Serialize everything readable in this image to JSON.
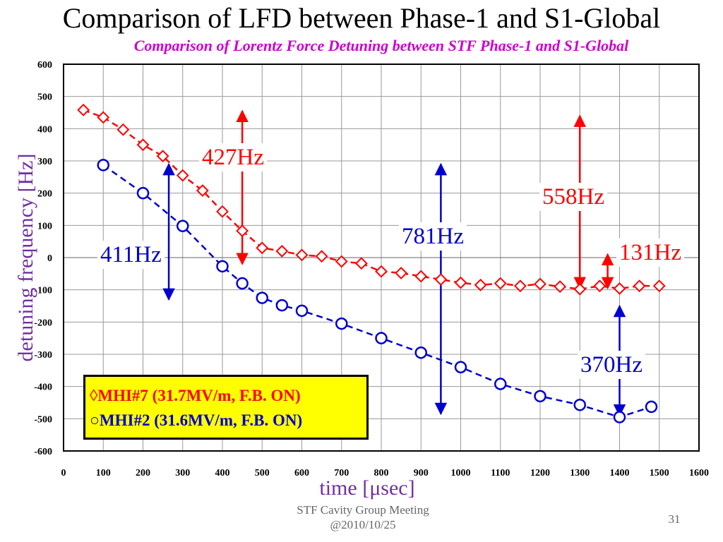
{
  "slide": {
    "title": "Comparison of LFD between Phase-1 and S1-Global",
    "footer_line1": "STF Cavity Group Meeting",
    "footer_line2": "@2010/10/25",
    "page_number": "31"
  },
  "chart_data": {
    "type": "line",
    "title": "Comparison of Lorentz Force Detuning between STF Phase-1 and S1-Global",
    "xlabel": "time [μsec]",
    "ylabel": "detuning frequency [Hz]",
    "xlim": [
      0,
      1600
    ],
    "ylim": [
      -600,
      600
    ],
    "xticks": [
      0,
      100,
      200,
      300,
      400,
      500,
      600,
      700,
      800,
      900,
      1000,
      1100,
      1200,
      1300,
      1400,
      1500,
      1600
    ],
    "yticks": [
      -600,
      -500,
      -400,
      -300,
      -200,
      -100,
      0,
      100,
      200,
      300,
      400,
      500,
      600
    ],
    "grid": true,
    "legend_position": "bottom-left",
    "series": [
      {
        "name": "MHI#7 (31.7MV/m, F.B. ON)",
        "marker": "diamond",
        "color": "#ff0000",
        "x": [
          50,
          100,
          150,
          200,
          250,
          300,
          350,
          400,
          450,
          500,
          550,
          600,
          650,
          700,
          750,
          800,
          850,
          900,
          950,
          1000,
          1050,
          1100,
          1150,
          1200,
          1250,
          1300,
          1350,
          1400,
          1450,
          1500
        ],
        "y": [
          458,
          435,
          397,
          350,
          315,
          255,
          208,
          143,
          83,
          30,
          20,
          8,
          4,
          -12,
          -18,
          -43,
          -48,
          -58,
          -68,
          -78,
          -85,
          -80,
          -88,
          -82,
          -90,
          -98,
          -88,
          -96,
          -88,
          -88
        ]
      },
      {
        "name": "MHI#2 (31.6MV/m, F.B. ON)",
        "marker": "circle",
        "color": "#0000cc",
        "x": [
          100,
          200,
          300,
          400,
          450,
          500,
          550,
          600,
          700,
          800,
          900,
          1000,
          1100,
          1200,
          1300,
          1400,
          1480
        ],
        "y": [
          287,
          200,
          98,
          -27,
          -80,
          -125,
          -148,
          -165,
          -205,
          -250,
          -295,
          -340,
          -392,
          -430,
          -457,
          -495,
          -463
        ]
      }
    ],
    "annotations": [
      {
        "text": "427Hz",
        "color": "#ff0000"
      },
      {
        "text": "411Hz",
        "color": "#0000cc"
      },
      {
        "text": "781Hz",
        "color": "#0000cc"
      },
      {
        "text": "558Hz",
        "color": "#ff0000"
      },
      {
        "text": "131Hz",
        "color": "#ff0000"
      },
      {
        "text": "370Hz",
        "color": "#0000cc"
      }
    ],
    "legend_symbols": {
      "red": "◊",
      "blue": "○"
    }
  }
}
